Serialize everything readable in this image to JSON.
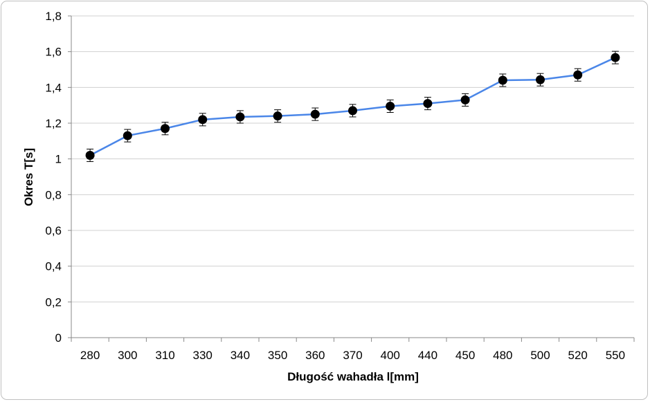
{
  "chart_data": {
    "type": "line",
    "title": "",
    "xlabel": "Długość wahadła l[mm]",
    "ylabel": "Okres T[s]",
    "categories": [
      "280",
      "300",
      "310",
      "330",
      "340",
      "350",
      "360",
      "370",
      "400",
      "440",
      "450",
      "480",
      "500",
      "520",
      "550"
    ],
    "series": [
      {
        "values": [
          1.02,
          1.13,
          1.17,
          1.22,
          1.235,
          1.24,
          1.25,
          1.27,
          1.295,
          1.31,
          1.33,
          1.44,
          1.443,
          1.47,
          1.567
        ],
        "error": 0.035,
        "color": "#4a86e8",
        "marker_color": "#000000"
      }
    ],
    "ylim": [
      0,
      1.8
    ],
    "yticks": [
      "0",
      "0,2",
      "0,4",
      "0,6",
      "0,8",
      "1",
      "1,2",
      "1,4",
      "1,6",
      "1,8"
    ],
    "ytick_values": [
      0,
      0.2,
      0.4,
      0.6,
      0.8,
      1.0,
      1.2,
      1.4,
      1.6,
      1.8
    ],
    "grid": true,
    "legend": "none"
  }
}
